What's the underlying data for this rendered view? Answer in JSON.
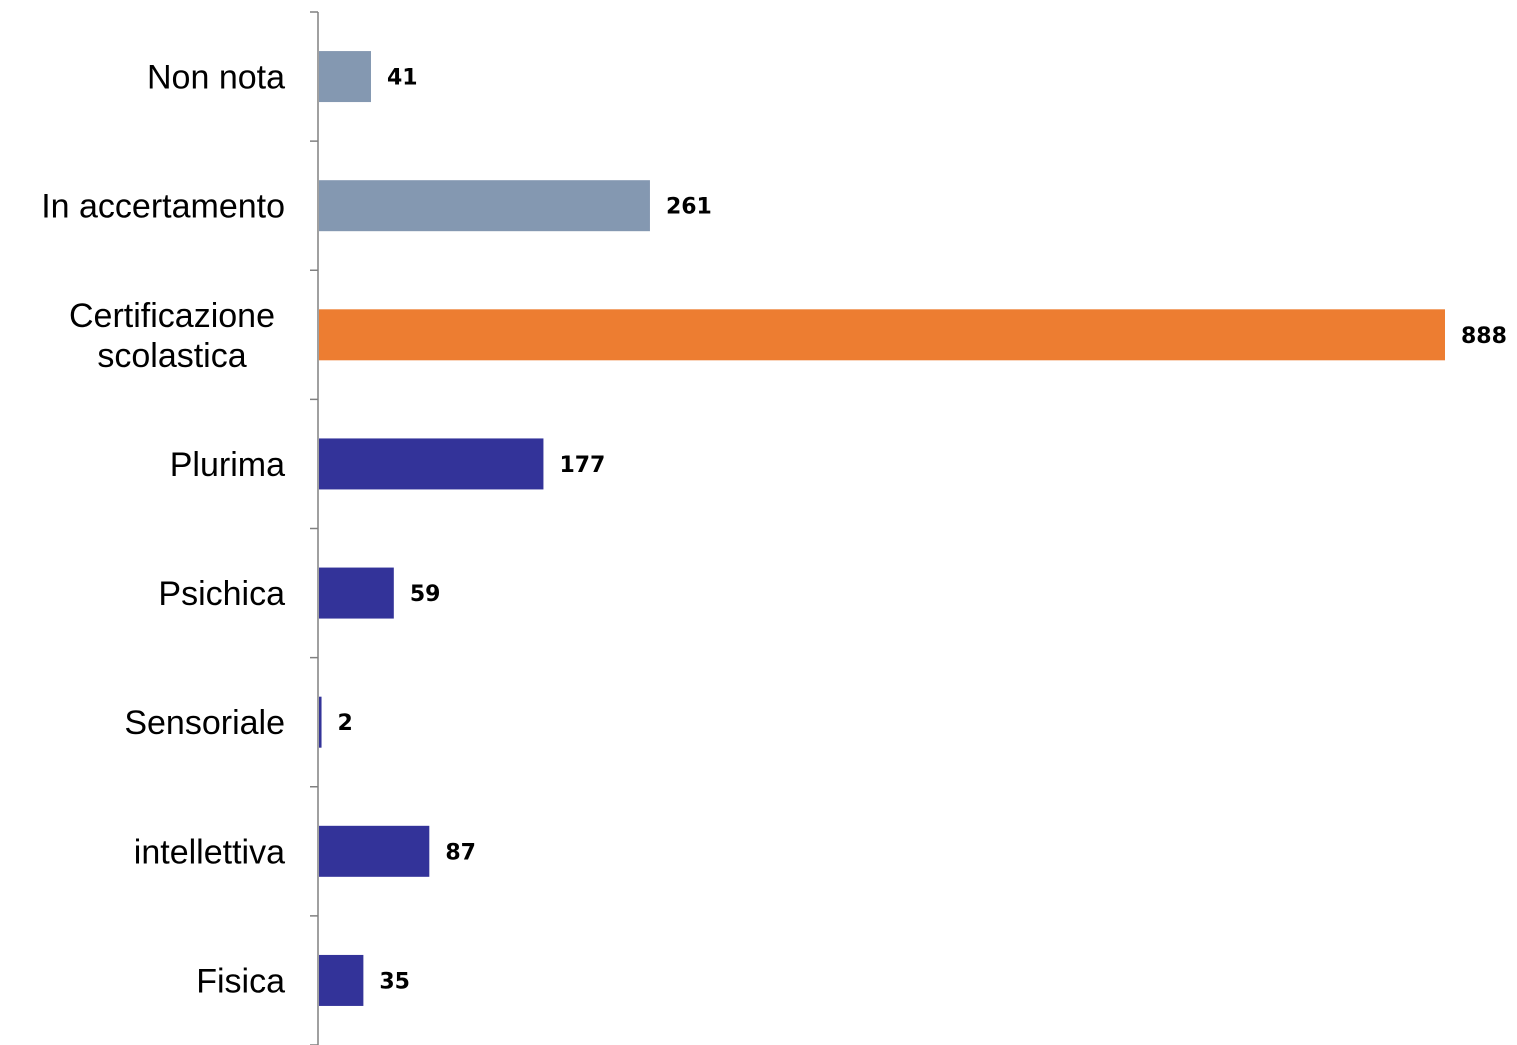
{
  "chart_data": {
    "type": "bar",
    "orientation": "horizontal",
    "categories": [
      [
        "Non nota"
      ],
      [
        "In accertamento"
      ],
      [
        "Certificazione",
        "scolastica"
      ],
      [
        "Plurima"
      ],
      [
        "Psichica"
      ],
      [
        "Sensoriale"
      ],
      [
        "intellettiva"
      ],
      [
        "Fisica"
      ]
    ],
    "values": [
      41,
      261,
      888,
      177,
      59,
      2,
      87,
      35
    ],
    "colors": [
      "#8498b1",
      "#8498b1",
      "#ed7d31",
      "#333399",
      "#333399",
      "#333399",
      "#333399",
      "#333399"
    ],
    "axis_color": "#808080",
    "xlim": [
      0,
      888
    ],
    "grid": false,
    "legend": false
  }
}
